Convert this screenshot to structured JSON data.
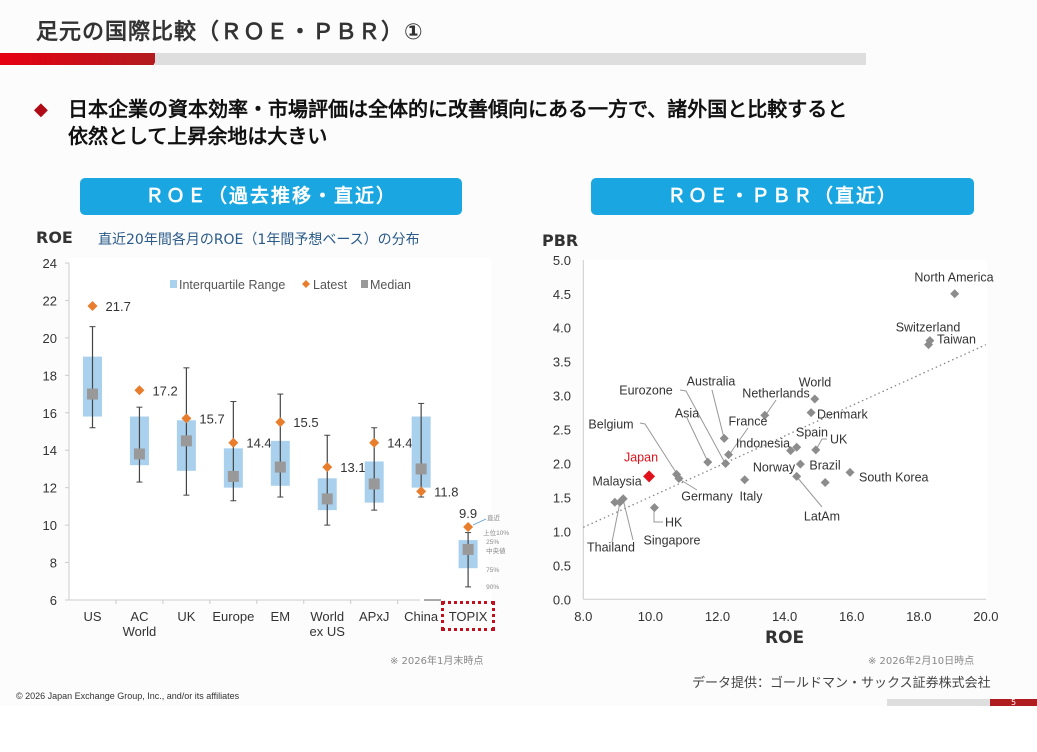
{
  "slide": {
    "title": "足元の国際比較（ＲＯＥ・ＰＢＲ）①",
    "bullet_icon": "diamond-icon",
    "bullet_line1": "日本企業の資本効率・市場評価は全体的に改善傾向にある一方で、諸外国と比較すると",
    "bullet_line2": "依然として上昇余地は大きい",
    "left_header": "ＲＯＥ（過去推移・直近）",
    "right_header": "ＲＯＥ・ＰＢＲ（直近）",
    "left_note": "※ 2026年1月末時点",
    "right_note": "※ 2026年2月10日時点",
    "source": "データ提供：ゴールドマン・サックス証券株式会社",
    "copyright": "© 2026 Japan Exchange Group, Inc., and/or its affiliates",
    "page_number": "5",
    "colors": {
      "accent_red": "#e60012",
      "header_blue": "#1aa7e1",
      "box_blue": "#a9d1ee",
      "latest_orange": "#e87d2e",
      "median_gray": "#999999",
      "japan_red": "#e0111b"
    }
  },
  "chart_data": [
    {
      "type": "box",
      "ylabel": "ROE",
      "subtitle": "直近20年間各月のROE（1年間予想ベース）の分布",
      "ylim": [
        6,
        24
      ],
      "yticks": [
        "6",
        "8",
        "10",
        "12",
        "14",
        "16",
        "18",
        "20",
        "22",
        "24"
      ],
      "legend": [
        "Interquartile Range",
        "Latest",
        "Median"
      ],
      "legend_position": "top-center",
      "categories": [
        "US",
        "AC|World",
        "UK",
        "Europe",
        "EM",
        "World|ex US",
        "APxJ",
        "China",
        "TOPIX"
      ],
      "q75": [
        19.0,
        15.8,
        15.6,
        14.1,
        14.5,
        12.5,
        13.4,
        15.8,
        9.2
      ],
      "q25": [
        15.8,
        13.2,
        12.9,
        12.0,
        12.1,
        10.8,
        11.2,
        12.0,
        7.7
      ],
      "median": [
        17.0,
        13.8,
        14.5,
        12.6,
        13.1,
        11.4,
        12.2,
        13.0,
        8.7
      ],
      "p90": [
        20.6,
        16.3,
        18.4,
        16.6,
        17.0,
        14.8,
        15.2,
        16.5,
        9.6
      ],
      "p10": [
        15.2,
        12.3,
        11.6,
        11.3,
        11.5,
        10.0,
        10.8,
        11.5,
        6.7
      ],
      "latest": [
        21.7,
        17.2,
        15.7,
        14.4,
        15.5,
        13.1,
        14.4,
        11.8,
        9.9
      ],
      "latest_labels": [
        "21.7",
        "17.2",
        "15.7",
        "14.4",
        "15.5",
        "13.1",
        "14.4",
        "11.8",
        "9.9"
      ],
      "topix_annotations": [
        "直近",
        "上位10%",
        "25%",
        "中央値",
        "75%",
        "90%"
      ],
      "highlighted_category": "TOPIX"
    },
    {
      "type": "scatter",
      "xlabel": "ROE",
      "ylabel": "PBR",
      "xlim": [
        8,
        20
      ],
      "ylim": [
        0,
        5
      ],
      "xticks": [
        "8.0",
        "10.0",
        "12.0",
        "14.0",
        "16.0",
        "18.0",
        "20.0"
      ],
      "yticks": [
        "0.0",
        "0.5",
        "1.0",
        "1.5",
        "2.0",
        "2.5",
        "3.0",
        "3.5",
        "4.0",
        "4.5",
        "5.0"
      ],
      "trendline": {
        "style": "dotted",
        "from": [
          8,
          1.06
        ],
        "to": [
          20,
          3.75
        ]
      },
      "points": [
        {
          "label": "North America",
          "roe": 19.07,
          "pbr": 4.5
        },
        {
          "label": "Switzerland",
          "roe": 18.33,
          "pbr": 3.81
        },
        {
          "label": "Taiwan",
          "roe": 18.29,
          "pbr": 3.75
        },
        {
          "label": "World",
          "roe": 14.9,
          "pbr": 2.95
        },
        {
          "label": "Netherlands",
          "roe": 13.41,
          "pbr": 2.71
        },
        {
          "label": "Denmark",
          "roe": 14.79,
          "pbr": 2.75
        },
        {
          "label": "Australia",
          "roe": 12.2,
          "pbr": 2.37
        },
        {
          "label": "Eurozone",
          "roe": 12.24,
          "pbr": 2.0
        },
        {
          "label": "Asia",
          "roe": 11.71,
          "pbr": 2.02
        },
        {
          "label": "France",
          "roe": 12.33,
          "pbr": 2.13
        },
        {
          "label": "Belgium",
          "roe": 10.78,
          "pbr": 1.84
        },
        {
          "label": "Indonesia",
          "roe": 14.18,
          "pbr": 2.19
        },
        {
          "label": "Spain",
          "roe": 14.36,
          "pbr": 2.24
        },
        {
          "label": "UK",
          "roe": 14.93,
          "pbr": 2.2
        },
        {
          "label": "Japan",
          "roe": 9.96,
          "pbr": 1.81,
          "highlight": true
        },
        {
          "label": "Norway",
          "roe": 14.47,
          "pbr": 1.99
        },
        {
          "label": "Brazil",
          "roe": 15.21,
          "pbr": 1.72
        },
        {
          "label": "South Korea",
          "roe": 15.95,
          "pbr": 1.87
        },
        {
          "label": "Malaysia",
          "roe": 8.94,
          "pbr": 1.43
        },
        {
          "label": "Germany",
          "roe": 10.85,
          "pbr": 1.78
        },
        {
          "label": "Italy",
          "roe": 12.81,
          "pbr": 1.76
        },
        {
          "label": "LatAm",
          "roe": 14.36,
          "pbr": 1.81
        },
        {
          "label": "HK",
          "roe": 10.12,
          "pbr": 1.35
        },
        {
          "label": "Singapore",
          "roe": 9.19,
          "pbr": 1.48
        },
        {
          "label": "Thailand",
          "roe": 9.09,
          "pbr": 1.43
        }
      ]
    }
  ]
}
